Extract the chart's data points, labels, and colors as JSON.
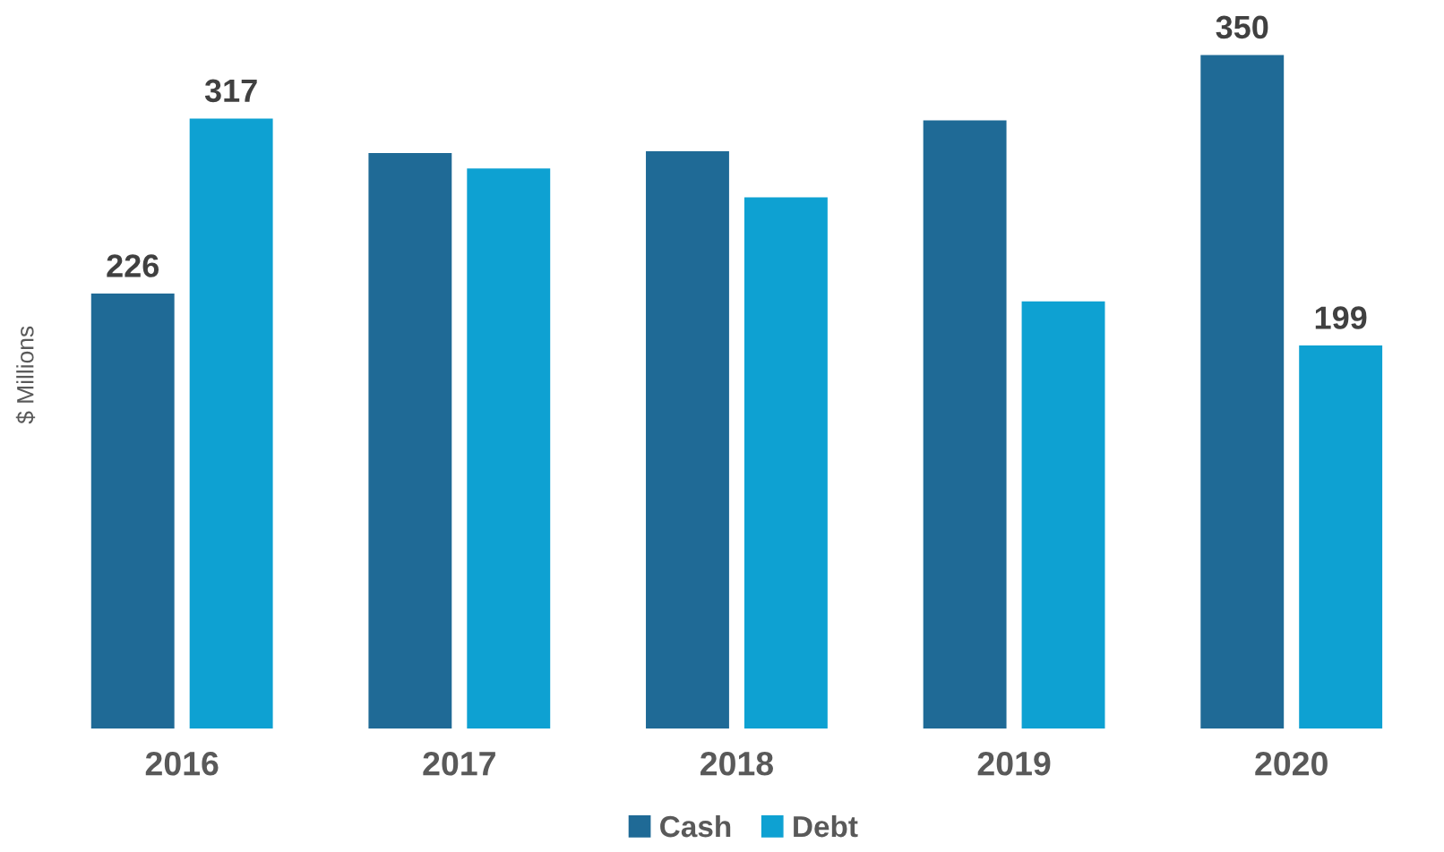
{
  "chart_data": {
    "type": "bar",
    "ylabel": "$ Millions",
    "categories": [
      "2016",
      "2017",
      "2018",
      "2019",
      "2020"
    ],
    "series": [
      {
        "name": "Cash",
        "color": "#1f6a96",
        "values": [
          226,
          299,
          300,
          316,
          350
        ],
        "value_labels": [
          "226",
          null,
          null,
          null,
          "350"
        ]
      },
      {
        "name": "Debt",
        "color": "#0ea1d2",
        "values": [
          317,
          291,
          276,
          222,
          199
        ],
        "value_labels": [
          "317",
          null,
          null,
          null,
          "199"
        ]
      }
    ],
    "grid": false,
    "legend": "bottom"
  }
}
